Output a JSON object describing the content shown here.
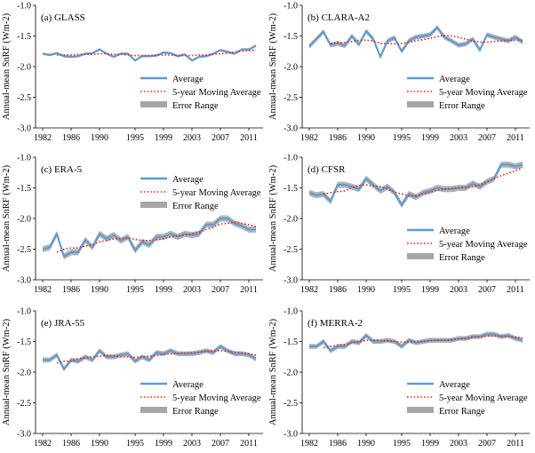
{
  "figure": {
    "y_axis_label": "Annual-mean SnRF (Wm-2)"
  },
  "legend": {
    "average": "Average",
    "moving_average": "5-year Moving Average",
    "error_range": "Error Range"
  },
  "colors": {
    "average": "#5b9bd5",
    "moving_average": "#e8251f",
    "error_range": "#a6a6a6",
    "axis": "#000000"
  },
  "chart_data": [
    {
      "type": "line",
      "title": "(a) GLASS",
      "ylabel": "Annual-mean SnRF (Wm-2)",
      "xlabel": "",
      "ylim": [
        -3.0,
        -1.0
      ],
      "yticks": [
        "-1.0",
        "-1.5",
        "-2.0",
        "-2.5",
        "-3.0"
      ],
      "xlim": [
        1981,
        2013
      ],
      "xticks": [
        "1982",
        "1986",
        "1990",
        "1995",
        "1999",
        "2003",
        "2007",
        "2011"
      ],
      "legend_position": "lower-right",
      "series": [
        {
          "name": "Average",
          "x": [
            1982,
            1983,
            1984,
            1985,
            1986,
            1987,
            1988,
            1989,
            1990,
            1991,
            1992,
            1993,
            1994,
            1995,
            1996,
            1997,
            1998,
            1999,
            2000,
            2001,
            2002,
            2003,
            2004,
            2005,
            2006,
            2007,
            2008,
            2009,
            2010,
            2011,
            2012
          ],
          "values": [
            -1.79,
            -1.81,
            -1.78,
            -1.83,
            -1.84,
            -1.83,
            -1.79,
            -1.78,
            -1.72,
            -1.79,
            -1.84,
            -1.79,
            -1.79,
            -1.9,
            -1.83,
            -1.83,
            -1.82,
            -1.77,
            -1.78,
            -1.83,
            -1.8,
            -1.9,
            -1.84,
            -1.83,
            -1.79,
            -1.73,
            -1.76,
            -1.79,
            -1.72,
            -1.72,
            -1.66
          ]
        },
        {
          "name": "5-year Moving Average",
          "x": [
            1984,
            1985,
            1986,
            1987,
            1988,
            1989,
            1990,
            1991,
            1992,
            1993,
            1994,
            1995,
            1996,
            1997,
            1998,
            1999,
            2000,
            2001,
            2002,
            2003,
            2004,
            2005,
            2006,
            2007,
            2008,
            2009,
            2010,
            2011,
            2012
          ],
          "values": [
            -1.81,
            -1.81,
            -1.81,
            -1.8,
            -1.8,
            -1.8,
            -1.79,
            -1.79,
            -1.8,
            -1.8,
            -1.81,
            -1.82,
            -1.82,
            -1.82,
            -1.81,
            -1.81,
            -1.81,
            -1.82,
            -1.82,
            -1.82,
            -1.81,
            -1.81,
            -1.8,
            -1.79,
            -1.78,
            -1.76,
            -1.75,
            -1.74,
            -1.73
          ]
        },
        {
          "name": "Error Range",
          "half_width": 0.02
        }
      ]
    },
    {
      "type": "line",
      "title": "(b) CLARA-A2",
      "ylabel": "Annual-mean SnRF (Wm-2)",
      "xlabel": "",
      "ylim": [
        -3.0,
        -1.0
      ],
      "yticks": [
        "-1.0",
        "-1.5",
        "-2.0",
        "-2.5",
        "-3.0"
      ],
      "xlim": [
        1981,
        2013
      ],
      "xticks": [
        "1982",
        "1986",
        "1990",
        "1995",
        "1999",
        "2003",
        "2007",
        "2011"
      ],
      "legend_position": "lower-right",
      "series": [
        {
          "name": "Average",
          "x": [
            1982,
            1983,
            1984,
            1985,
            1986,
            1987,
            1988,
            1989,
            1990,
            1991,
            1992,
            1993,
            1994,
            1995,
            1996,
            1997,
            1998,
            1999,
            2000,
            2001,
            2002,
            2003,
            2004,
            2005,
            2006,
            2007,
            2008,
            2009,
            2010,
            2011,
            2012
          ],
          "values": [
            -1.67,
            -1.55,
            -1.43,
            -1.65,
            -1.62,
            -1.66,
            -1.5,
            -1.64,
            -1.42,
            -1.55,
            -1.84,
            -1.58,
            -1.53,
            -1.75,
            -1.58,
            -1.52,
            -1.5,
            -1.48,
            -1.36,
            -1.52,
            -1.58,
            -1.65,
            -1.63,
            -1.55,
            -1.73,
            -1.48,
            -1.52,
            -1.55,
            -1.58,
            -1.52,
            -1.6
          ]
        },
        {
          "name": "5-year Moving Average",
          "x": [
            1985,
            1986,
            1987,
            1988,
            1989,
            1990,
            1991,
            1992,
            1993,
            1994,
            1995,
            1996,
            1997,
            1998,
            1999,
            2000,
            2001,
            2002,
            2003,
            2004,
            2005,
            2006,
            2007,
            2008,
            2009,
            2010,
            2011,
            2012
          ],
          "values": [
            -1.62,
            -1.61,
            -1.61,
            -1.59,
            -1.57,
            -1.57,
            -1.58,
            -1.62,
            -1.62,
            -1.63,
            -1.62,
            -1.6,
            -1.58,
            -1.56,
            -1.54,
            -1.51,
            -1.49,
            -1.5,
            -1.52,
            -1.55,
            -1.58,
            -1.6,
            -1.6,
            -1.59,
            -1.58,
            -1.57,
            -1.57,
            -1.57
          ]
        },
        {
          "name": "Error Range",
          "half_width": 0.04
        }
      ]
    },
    {
      "type": "line",
      "title": "(c) ERA-5",
      "ylabel": "Annual-mean SnRF (Wm-2)",
      "xlabel": "",
      "ylim": [
        -3.0,
        -1.0
      ],
      "yticks": [
        "-1.0",
        "-1.5",
        "-2.0",
        "-2.5",
        "-3.0"
      ],
      "xlim": [
        1981,
        2013
      ],
      "xticks": [
        "1982",
        "1986",
        "1990",
        "1995",
        "1999",
        "2003",
        "2007",
        "2011"
      ],
      "legend_position": "top-right",
      "series": [
        {
          "name": "Average",
          "x": [
            1982,
            1983,
            1984,
            1985,
            1986,
            1987,
            1988,
            1989,
            1990,
            1991,
            1992,
            1993,
            1994,
            1995,
            1996,
            1997,
            1998,
            1999,
            2000,
            2001,
            2002,
            2003,
            2004,
            2005,
            2006,
            2007,
            2008,
            2009,
            2010,
            2011,
            2012
          ],
          "values": [
            -2.5,
            -2.47,
            -2.25,
            -2.62,
            -2.55,
            -2.55,
            -2.35,
            -2.47,
            -2.25,
            -2.33,
            -2.27,
            -2.36,
            -2.3,
            -2.52,
            -2.38,
            -2.43,
            -2.3,
            -2.3,
            -2.25,
            -2.3,
            -2.25,
            -2.27,
            -2.25,
            -2.1,
            -2.1,
            -2.0,
            -2.0,
            -2.08,
            -2.12,
            -2.18,
            -2.18
          ]
        },
        {
          "name": "5-year Moving Average",
          "x": [
            1984,
            1985,
            1986,
            1987,
            1988,
            1989,
            1990,
            1991,
            1992,
            1993,
            1994,
            1995,
            1996,
            1997,
            1998,
            1999,
            2000,
            2001,
            2002,
            2003,
            2004,
            2005,
            2006,
            2007,
            2008,
            2009,
            2010,
            2011,
            2012
          ],
          "values": [
            -2.55,
            -2.5,
            -2.48,
            -2.48,
            -2.45,
            -2.43,
            -2.38,
            -2.36,
            -2.33,
            -2.33,
            -2.32,
            -2.34,
            -2.36,
            -2.36,
            -2.35,
            -2.33,
            -2.3,
            -2.28,
            -2.27,
            -2.25,
            -2.22,
            -2.18,
            -2.14,
            -2.09,
            -2.08,
            -2.06,
            -2.08,
            -2.1,
            -2.13
          ]
        },
        {
          "name": "Error Range",
          "half_width": 0.05
        }
      ]
    },
    {
      "type": "line",
      "title": "(d) CFSR",
      "ylabel": "Annual-mean SnRF (Wm-2)",
      "xlabel": "",
      "ylim": [
        -3.0,
        -1.0
      ],
      "yticks": [
        "-1.0",
        "-1.5",
        "-2.0",
        "-2.5",
        "-3.0"
      ],
      "xlim": [
        1981,
        2013
      ],
      "xticks": [
        "1982",
        "1986",
        "1990",
        "1995",
        "1999",
        "2003",
        "2007",
        "2011"
      ],
      "legend_position": "lower-right",
      "series": [
        {
          "name": "Average",
          "x": [
            1982,
            1983,
            1984,
            1985,
            1986,
            1987,
            1988,
            1989,
            1990,
            1991,
            1992,
            1993,
            1994,
            1995,
            1996,
            1997,
            1998,
            1999,
            2000,
            2001,
            2002,
            2003,
            2004,
            2005,
            2006,
            2007,
            2008,
            2009,
            2010,
            2011,
            2012
          ],
          "values": [
            -1.58,
            -1.62,
            -1.6,
            -1.72,
            -1.45,
            -1.45,
            -1.48,
            -1.52,
            -1.35,
            -1.45,
            -1.55,
            -1.48,
            -1.58,
            -1.78,
            -1.6,
            -1.65,
            -1.58,
            -1.55,
            -1.5,
            -1.52,
            -1.52,
            -1.5,
            -1.5,
            -1.43,
            -1.48,
            -1.4,
            -1.35,
            -1.12,
            -1.12,
            -1.15,
            -1.12
          ]
        },
        {
          "name": "5-year Moving Average",
          "x": [
            1984,
            1985,
            1986,
            1987,
            1988,
            1989,
            1990,
            1991,
            1992,
            1993,
            1994,
            1995,
            1996,
            1997,
            1998,
            1999,
            2000,
            2001,
            2002,
            2003,
            2004,
            2005,
            2006,
            2007,
            2008,
            2009,
            2010,
            2011,
            2012
          ],
          "values": [
            -1.6,
            -1.58,
            -1.56,
            -1.55,
            -1.5,
            -1.46,
            -1.45,
            -1.47,
            -1.48,
            -1.52,
            -1.57,
            -1.6,
            -1.63,
            -1.63,
            -1.6,
            -1.57,
            -1.54,
            -1.52,
            -1.51,
            -1.5,
            -1.49,
            -1.48,
            -1.45,
            -1.4,
            -1.35,
            -1.3,
            -1.26,
            -1.22,
            -1.17
          ]
        },
        {
          "name": "Error Range",
          "half_width": 0.05
        }
      ]
    },
    {
      "type": "line",
      "title": "(e) JRA-55",
      "ylabel": "Annual-mean SnRF (Wm-2)",
      "xlabel": "",
      "ylim": [
        -3.0,
        -1.0
      ],
      "yticks": [
        "-1.0",
        "-1.5",
        "-2.0",
        "-2.5",
        "-3.0"
      ],
      "xlim": [
        1981,
        2013
      ],
      "xticks": [
        "1982",
        "1986",
        "1990",
        "1995",
        "1999",
        "2003",
        "2007",
        "2011"
      ],
      "legend_position": "lower-right",
      "series": [
        {
          "name": "Average",
          "x": [
            1982,
            1983,
            1984,
            1985,
            1986,
            1987,
            1988,
            1989,
            1990,
            1991,
            1992,
            1993,
            1994,
            1995,
            1996,
            1997,
            1998,
            1999,
            2000,
            2001,
            2002,
            2003,
            2004,
            2005,
            2006,
            2007,
            2008,
            2009,
            2010,
            2011,
            2012
          ],
          "values": [
            -1.8,
            -1.8,
            -1.72,
            -1.95,
            -1.8,
            -1.82,
            -1.75,
            -1.8,
            -1.65,
            -1.75,
            -1.75,
            -1.72,
            -1.7,
            -1.82,
            -1.75,
            -1.8,
            -1.68,
            -1.7,
            -1.65,
            -1.7,
            -1.7,
            -1.7,
            -1.68,
            -1.65,
            -1.68,
            -1.58,
            -1.65,
            -1.7,
            -1.7,
            -1.72,
            -1.78
          ]
        },
        {
          "name": "5-year Moving Average",
          "x": [
            1984,
            1985,
            1986,
            1987,
            1988,
            1989,
            1990,
            1991,
            1992,
            1993,
            1994,
            1995,
            1996,
            1997,
            1998,
            1999,
            2000,
            2001,
            2002,
            2003,
            2004,
            2005,
            2006,
            2007,
            2008,
            2009,
            2010,
            2011,
            2012
          ],
          "values": [
            -1.85,
            -1.82,
            -1.82,
            -1.78,
            -1.77,
            -1.75,
            -1.74,
            -1.73,
            -1.73,
            -1.75,
            -1.75,
            -1.76,
            -1.75,
            -1.74,
            -1.73,
            -1.71,
            -1.7,
            -1.69,
            -1.69,
            -1.68,
            -1.67,
            -1.66,
            -1.65,
            -1.65,
            -1.66,
            -1.67,
            -1.68,
            -1.7,
            -1.72
          ]
        },
        {
          "name": "Error Range",
          "half_width": 0.04
        }
      ]
    },
    {
      "type": "line",
      "title": "(f) MERRA-2",
      "ylabel": "Annual-mean SnRF (Wm-2)",
      "xlabel": "",
      "ylim": [
        -3.0,
        -1.0
      ],
      "yticks": [
        "-1.0",
        "-1.5",
        "-2.0",
        "-2.5",
        "-3.0"
      ],
      "xlim": [
        1981,
        2013
      ],
      "xticks": [
        "1982",
        "1986",
        "1990",
        "1995",
        "1999",
        "2003",
        "2007",
        "2011"
      ],
      "legend_position": "lower-right",
      "series": [
        {
          "name": "Average",
          "x": [
            1982,
            1983,
            1984,
            1985,
            1986,
            1987,
            1988,
            1989,
            1990,
            1991,
            1992,
            1993,
            1994,
            1995,
            1996,
            1997,
            1998,
            1999,
            2000,
            2001,
            2002,
            2003,
            2004,
            2005,
            2006,
            2007,
            2008,
            2009,
            2010,
            2011,
            2012
          ],
          "values": [
            -1.58,
            -1.58,
            -1.5,
            -1.65,
            -1.58,
            -1.58,
            -1.5,
            -1.52,
            -1.4,
            -1.5,
            -1.5,
            -1.48,
            -1.5,
            -1.58,
            -1.48,
            -1.52,
            -1.5,
            -1.48,
            -1.48,
            -1.48,
            -1.48,
            -1.45,
            -1.45,
            -1.42,
            -1.42,
            -1.38,
            -1.38,
            -1.42,
            -1.4,
            -1.45,
            -1.48
          ]
        },
        {
          "name": "5-year Moving Average",
          "x": [
            1984,
            1985,
            1986,
            1987,
            1988,
            1989,
            1990,
            1991,
            1992,
            1993,
            1994,
            1995,
            1996,
            1997,
            1998,
            1999,
            2000,
            2001,
            2002,
            2003,
            2004,
            2005,
            2006,
            2007,
            2008,
            2009,
            2010,
            2011,
            2012
          ],
          "values": [
            -1.6,
            -1.58,
            -1.56,
            -1.55,
            -1.52,
            -1.5,
            -1.48,
            -1.48,
            -1.48,
            -1.49,
            -1.5,
            -1.51,
            -1.51,
            -1.5,
            -1.5,
            -1.49,
            -1.48,
            -1.48,
            -1.47,
            -1.46,
            -1.45,
            -1.43,
            -1.42,
            -1.41,
            -1.41,
            -1.41,
            -1.42,
            -1.43,
            -1.44
          ]
        },
        {
          "name": "Error Range",
          "half_width": 0.04
        }
      ]
    }
  ]
}
